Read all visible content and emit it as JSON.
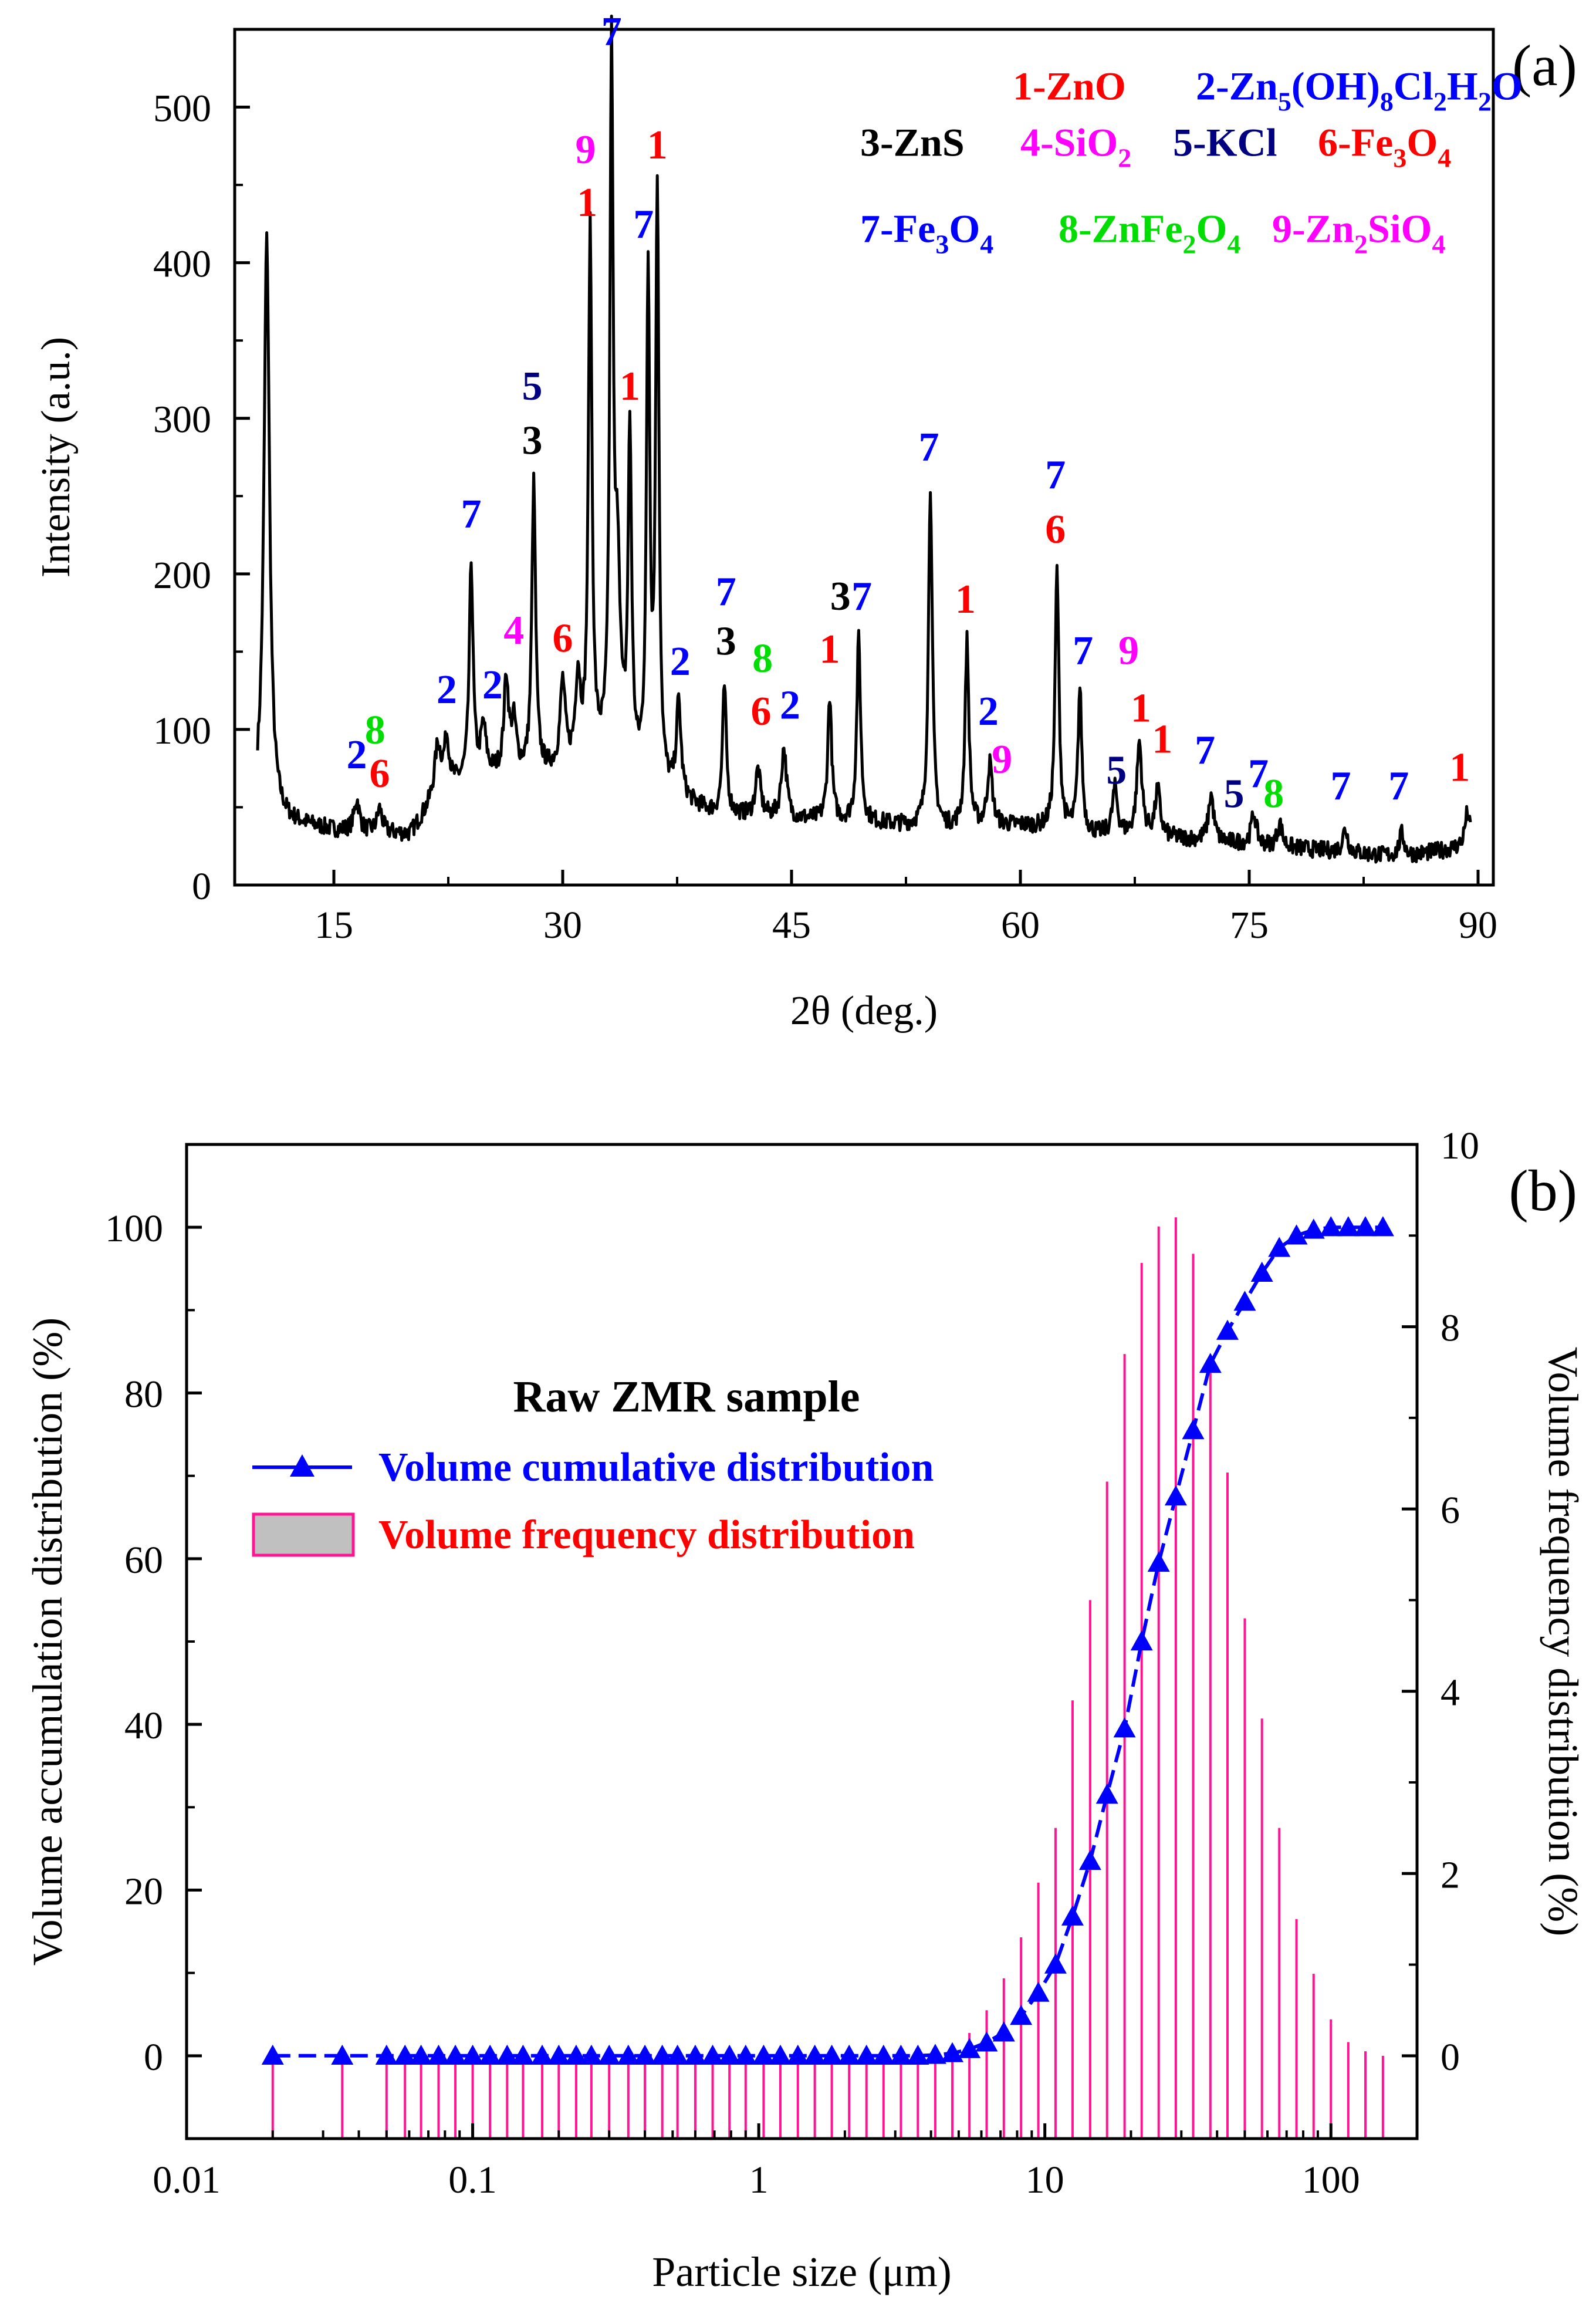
{
  "colors": {
    "black": "#000000",
    "red": "#ff0000",
    "blue": "#0000ff",
    "magenta": "#ff00ff",
    "navy": "#000080",
    "green": "#00dd00",
    "pink": "#ff1493",
    "legend_fill": "#c0c0c0"
  },
  "chart_data": [
    {
      "type": "line",
      "panel_label": "(a)",
      "xlabel": "2θ (deg.)",
      "ylabel": "Intensity (a.u.)",
      "xlim": [
        8.5,
        91
      ],
      "ylim": [
        0,
        550
      ],
      "xticks": [
        15,
        30,
        45,
        60,
        75,
        90
      ],
      "xtick_labels": [
        "15",
        "30",
        "45",
        "60",
        "75",
        "90"
      ],
      "yticks": [
        0,
        100,
        200,
        300,
        400,
        500
      ],
      "ytick_labels": [
        "0",
        "100",
        "200",
        "300",
        "400",
        "500"
      ],
      "baseline": [
        [
          10,
          48
        ],
        [
          12,
          40
        ],
        [
          15,
          35
        ],
        [
          20,
          32
        ],
        [
          22,
          60
        ],
        [
          25,
          70
        ],
        [
          30,
          72
        ],
        [
          33,
          78
        ],
        [
          36,
          60
        ],
        [
          40,
          45
        ],
        [
          45,
          42
        ],
        [
          50,
          40
        ],
        [
          55,
          36
        ],
        [
          60,
          38
        ],
        [
          65,
          32
        ],
        [
          70,
          30
        ],
        [
          75,
          26
        ],
        [
          80,
          22
        ],
        [
          85,
          18
        ],
        [
          89.5,
          25
        ]
      ],
      "peaks": [
        [
          10.6,
          370,
          0.22
        ],
        [
          16.5,
          20,
          0.2
        ],
        [
          18.0,
          15,
          0.2
        ],
        [
          21.8,
          30,
          0.25
        ],
        [
          22.4,
          30,
          0.2
        ],
        [
          24.0,
          138,
          0.15
        ],
        [
          24.8,
          30,
          0.2
        ],
        [
          26.3,
          60,
          0.18
        ],
        [
          26.8,
          30,
          0.2
        ],
        [
          28.1,
          185,
          0.15
        ],
        [
          30.0,
          55,
          0.2
        ],
        [
          31.0,
          55,
          0.2
        ],
        [
          31.8,
          340,
          0.14
        ],
        [
          33.2,
          445,
          0.13
        ],
        [
          33.6,
          118,
          0.2
        ],
        [
          34.4,
          215,
          0.14
        ],
        [
          35.6,
          322,
          0.13
        ],
        [
          36.2,
          382,
          0.13
        ],
        [
          37.6,
          60,
          0.18
        ],
        [
          40.6,
          82,
          0.15
        ],
        [
          42.8,
          30,
          0.2
        ],
        [
          44.5,
          45,
          0.2
        ],
        [
          47.5,
          80,
          0.15
        ],
        [
          49.4,
          118,
          0.15
        ],
        [
          54.1,
          220,
          0.15
        ],
        [
          56.5,
          120,
          0.15
        ],
        [
          58.0,
          40,
          0.2
        ],
        [
          62.4,
          167,
          0.15
        ],
        [
          63.9,
          92,
          0.15
        ],
        [
          66.2,
          30,
          0.2
        ],
        [
          67.8,
          60,
          0.2
        ],
        [
          69.0,
          30,
          0.2
        ],
        [
          72.5,
          30,
          0.2
        ],
        [
          75.3,
          20,
          0.2
        ],
        [
          77.0,
          15,
          0.2
        ],
        [
          81.3,
          15,
          0.2
        ],
        [
          85.0,
          15,
          0.2
        ],
        [
          89.3,
          22,
          0.2
        ]
      ],
      "peak_markers": [
        {
          "text": "2",
          "x": 16.5,
          "y": 75,
          "color": "blue"
        },
        {
          "text": "8",
          "x": 17.7,
          "y": 91,
          "color": "green"
        },
        {
          "text": "6",
          "x": 18.0,
          "y": 63,
          "color": "red"
        },
        {
          "text": "7",
          "x": 24.0,
          "y": 230,
          "color": "blue"
        },
        {
          "text": "2",
          "x": 22.4,
          "y": 117,
          "color": "blue"
        },
        {
          "text": "2",
          "x": 25.4,
          "y": 120,
          "color": "blue"
        },
        {
          "text": "4",
          "x": 26.8,
          "y": 155,
          "color": "magenta"
        },
        {
          "text": "5",
          "x": 28.0,
          "y": 312,
          "color": "navy"
        },
        {
          "text": "3",
          "x": 28.0,
          "y": 277,
          "color": "black"
        },
        {
          "text": "6",
          "x": 30.0,
          "y": 150,
          "color": "red"
        },
        {
          "text": "9",
          "x": 31.5,
          "y": 464,
          "color": "magenta"
        },
        {
          "text": "1",
          "x": 31.6,
          "y": 430,
          "color": "red"
        },
        {
          "text": "7",
          "x": 33.2,
          "y": 540,
          "color": "blue"
        },
        {
          "text": "1",
          "x": 34.4,
          "y": 312,
          "color": "red"
        },
        {
          "text": "7",
          "x": 35.3,
          "y": 416,
          "color": "blue"
        },
        {
          "text": "1",
          "x": 36.2,
          "y": 467,
          "color": "red"
        },
        {
          "text": "2",
          "x": 37.7,
          "y": 135,
          "color": "blue"
        },
        {
          "text": "7",
          "x": 40.7,
          "y": 180,
          "color": "blue"
        },
        {
          "text": "3",
          "x": 40.7,
          "y": 148,
          "color": "black"
        },
        {
          "text": "8",
          "x": 43.1,
          "y": 137,
          "color": "green"
        },
        {
          "text": "6",
          "x": 43.0,
          "y": 103,
          "color": "red"
        },
        {
          "text": "2",
          "x": 44.9,
          "y": 107,
          "color": "blue"
        },
        {
          "text": "1",
          "x": 47.5,
          "y": 143,
          "color": "red"
        },
        {
          "text": "3",
          "x": 48.2,
          "y": 177,
          "color": "black"
        },
        {
          "text": "7",
          "x": 49.6,
          "y": 177,
          "color": "blue"
        },
        {
          "text": "7",
          "x": 54.0,
          "y": 273,
          "color": "blue"
        },
        {
          "text": "1",
          "x": 56.4,
          "y": 175,
          "color": "red"
        },
        {
          "text": "2",
          "x": 57.9,
          "y": 103,
          "color": "blue"
        },
        {
          "text": "9",
          "x": 58.8,
          "y": 72,
          "color": "magenta"
        },
        {
          "text": "7",
          "x": 62.3,
          "y": 255,
          "color": "blue"
        },
        {
          "text": "6",
          "x": 62.3,
          "y": 220,
          "color": "red"
        },
        {
          "text": "7",
          "x": 64.1,
          "y": 142,
          "color": "blue"
        },
        {
          "text": "9",
          "x": 67.1,
          "y": 142,
          "color": "magenta"
        },
        {
          "text": "5",
          "x": 66.3,
          "y": 65,
          "color": "navy"
        },
        {
          "text": "1",
          "x": 67.9,
          "y": 105,
          "color": "red"
        },
        {
          "text": "1",
          "x": 69.3,
          "y": 85,
          "color": "red"
        },
        {
          "text": "7",
          "x": 72.1,
          "y": 78,
          "color": "blue"
        },
        {
          "text": "5",
          "x": 74.0,
          "y": 50,
          "color": "navy"
        },
        {
          "text": "7",
          "x": 75.6,
          "y": 63,
          "color": "blue"
        },
        {
          "text": "8",
          "x": 76.6,
          "y": 50,
          "color": "green"
        },
        {
          "text": "7",
          "x": 81.0,
          "y": 55,
          "color": "blue"
        },
        {
          "text": "7",
          "x": 84.8,
          "y": 55,
          "color": "blue"
        },
        {
          "text": "1",
          "x": 88.8,
          "y": 67,
          "color": "red"
        }
      ],
      "legend": [
        {
          "id": "1",
          "name": "ZnO",
          "color": "red",
          "row": 0,
          "col_x": 59.5
        },
        {
          "id": "2",
          "name": "Zn5(OH)8Cl2H2O",
          "color": "blue",
          "row": 0,
          "col_x": 71.5
        },
        {
          "id": "3",
          "name": "ZnS",
          "color": "black",
          "row": 1,
          "col_x": 49.5
        },
        {
          "id": "4",
          "name": "SiO2",
          "color": "magenta",
          "row": 1,
          "col_x": 60.0
        },
        {
          "id": "5",
          "name": "KCl",
          "color": "navy",
          "row": 1,
          "col_x": 70.0
        },
        {
          "id": "6",
          "name": "Fe3O4",
          "color": "red",
          "row": 1,
          "col_x": 79.5
        },
        {
          "id": "7",
          "name": "Fe3O4",
          "color": "blue",
          "row": 2,
          "col_x": 49.5
        },
        {
          "id": "8",
          "name": "ZnFe2O4",
          "color": "green",
          "row": 2,
          "col_x": 62.5
        },
        {
          "id": "9",
          "name": "Zn2SiO4",
          "color": "magenta",
          "row": 2,
          "col_x": 76.5
        }
      ]
    },
    {
      "type": "bar+line",
      "panel_label": "(b)",
      "title": "Raw ZMR sample",
      "xlabel": "Particle size (μm)",
      "ylabel_left": "Volume accumulation distribution (%)",
      "ylabel_right": "Volume frequency distribution (%)",
      "xscale": "log",
      "xlim": [
        0.01,
        200
      ],
      "ylim_left": [
        -10,
        110
      ],
      "ylim_right": [
        -0.9091,
        10
      ],
      "xticks": [
        0.01,
        0.1,
        1,
        10,
        100
      ],
      "xtick_labels": [
        "0.01",
        "0.1",
        "1",
        "10",
        "100"
      ],
      "yticks_left": [
        0,
        20,
        40,
        60,
        80,
        100
      ],
      "ytick_labels_left": [
        "0",
        "20",
        "40",
        "60",
        "80",
        "100"
      ],
      "yticks_right": [
        0,
        2,
        4,
        6,
        8,
        10
      ],
      "ytick_labels_right": [
        "0",
        "2",
        "4",
        "6",
        "8",
        "10"
      ],
      "legend": [
        {
          "name": "Volume cumulative distribution",
          "color": "blue",
          "marker": "triangle-line"
        },
        {
          "name": "Volume frequency distribution",
          "color": "red",
          "marker": "box"
        }
      ],
      "cumulative": {
        "x": [
          0.02,
          0.035,
          0.05,
          0.058,
          0.066,
          0.076,
          0.087,
          0.1,
          0.115,
          0.132,
          0.15,
          0.175,
          0.2,
          0.23,
          0.26,
          0.3,
          0.35,
          0.4,
          0.46,
          0.52,
          0.6,
          0.69,
          0.79,
          0.9,
          1.04,
          1.19,
          1.37,
          1.57,
          1.8,
          2.07,
          2.38,
          2.73,
          3.14,
          3.6,
          4.14,
          4.75,
          5.45,
          6.26,
          7.19,
          8.26,
          9.49,
          10.9,
          12.5,
          14.4,
          16.5,
          19.0,
          21.8,
          25.0,
          28.7,
          33.0,
          37.9,
          43.5,
          50.0,
          57.4,
          66.0,
          75.8,
          87.0,
          100.0,
          115.0,
          132.0,
          152.0
        ],
        "y": [
          0,
          0,
          0,
          0,
          0,
          0,
          0,
          0,
          0,
          0,
          0,
          0,
          0,
          0,
          0,
          0,
          0,
          0,
          0,
          0,
          0,
          0,
          0,
          0,
          0,
          0,
          0,
          0,
          0,
          0,
          0,
          0,
          0,
          0,
          0.1,
          0.3,
          0.8,
          1.6,
          2.8,
          4.8,
          7.6,
          11.0,
          16.8,
          23.5,
          31.5,
          39.5,
          50.0,
          59.5,
          67.5,
          75.5,
          83.5,
          87.5,
          91.0,
          94.5,
          97.5,
          99.0,
          99.7,
          100,
          100,
          100,
          100
        ]
      },
      "frequency": {
        "x": [
          0.02,
          0.035,
          0.05,
          0.058,
          0.066,
          0.076,
          0.087,
          0.1,
          0.115,
          0.132,
          0.15,
          0.175,
          0.2,
          0.23,
          0.26,
          0.3,
          0.35,
          0.4,
          0.46,
          0.52,
          0.6,
          0.69,
          0.79,
          0.9,
          1.04,
          1.19,
          1.37,
          1.57,
          1.8,
          2.07,
          2.38,
          2.73,
          3.14,
          3.6,
          4.14,
          4.75,
          5.45,
          6.26,
          7.19,
          8.26,
          9.49,
          10.9,
          12.5,
          14.4,
          16.5,
          19.0,
          21.8,
          25.0,
          28.7,
          33.0,
          37.9,
          43.5,
          50.0,
          57.4,
          66.0,
          75.8,
          87.0,
          100.0,
          115.0,
          132.0,
          152.0
        ],
        "y": [
          0,
          0,
          0,
          0,
          0,
          0,
          0,
          0,
          0,
          0,
          0,
          0,
          0,
          0,
          0,
          0,
          0,
          0,
          0,
          0,
          0,
          0,
          0,
          0,
          0,
          0,
          0,
          0,
          0,
          0,
          0,
          0,
          0,
          0,
          0.05,
          0.1,
          0.25,
          0.5,
          0.85,
          1.3,
          1.9,
          2.5,
          3.9,
          5.0,
          6.3,
          7.7,
          8.7,
          9.1,
          9.2,
          8.8,
          7.6,
          6.4,
          4.8,
          3.7,
          2.5,
          1.5,
          0.9,
          0.4,
          0.15,
          0.05,
          0
        ]
      }
    }
  ]
}
